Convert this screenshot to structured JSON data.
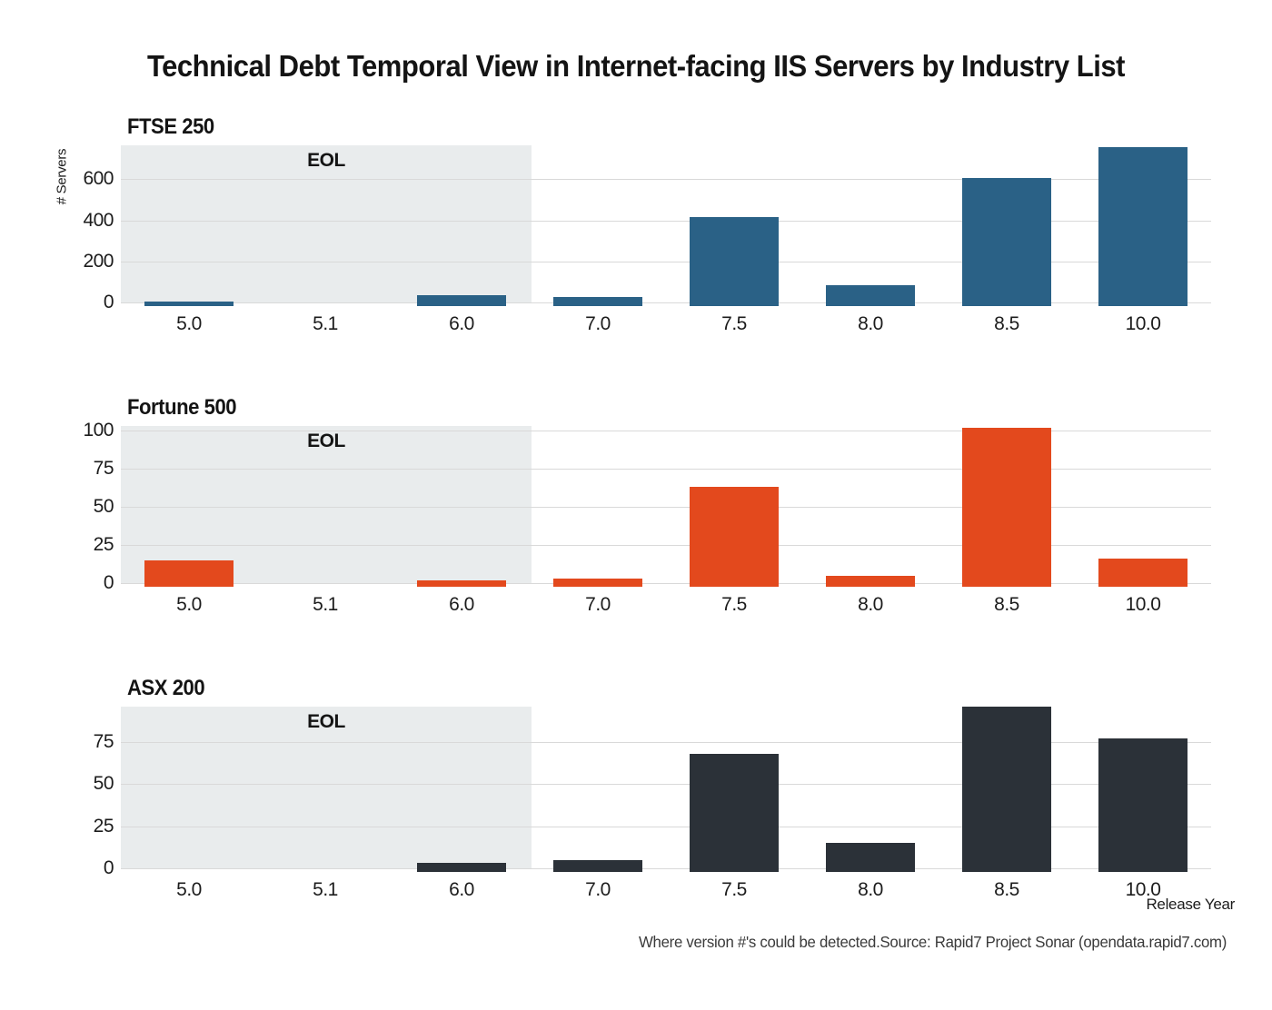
{
  "page": {
    "title": "Technical Debt Temporal View in Internet-facing IIS Servers by Industry List",
    "caption": "Where version #'s could be detected.Source: Rapid7 Project Sonar (opendata.rapid7.com)",
    "x_axis_label": "Release Year",
    "y_axis_label": "# Servers",
    "eol_label": "EOL"
  },
  "colors": {
    "ftse_bar": "#2a6186",
    "fortune_bar": "#e3491d",
    "asx_bar": "#2b3138",
    "eol_band": "#e9eced",
    "gridline": "#d9d9d9",
    "text": "#1c1c1c",
    "caption_text": "#3a3a3a"
  },
  "chart_data": [
    {
      "type": "bar",
      "title": "FTSE 250",
      "categories": [
        "5.0",
        "5.1",
        "6.0",
        "7.0",
        "7.5",
        "8.0",
        "8.5",
        "10.0"
      ],
      "values": [
        5,
        0,
        35,
        28,
        415,
        85,
        605,
        755
      ],
      "ylabel": "# Servers",
      "xlabel": "Release Year",
      "yticks": [
        0,
        200,
        400,
        600
      ],
      "ylim": [
        0,
        765
      ],
      "bar_color": "#2a6186",
      "annotation": "EOL",
      "annotation_span": [
        "5.0",
        "6.0"
      ],
      "grid": "on",
      "legend": "none"
    },
    {
      "type": "bar",
      "title": "Fortune 500",
      "categories": [
        "5.0",
        "5.1",
        "6.0",
        "7.0",
        "7.5",
        "8.0",
        "8.5",
        "10.0"
      ],
      "values": [
        15,
        0,
        2,
        3,
        63,
        5,
        102,
        16
      ],
      "ylabel": "",
      "xlabel": "Release Year",
      "yticks": [
        0,
        25,
        50,
        75,
        100
      ],
      "ylim": [
        0,
        103
      ],
      "bar_color": "#e3491d",
      "annotation": "EOL",
      "annotation_span": [
        "5.0",
        "6.0"
      ],
      "grid": "on",
      "legend": "none"
    },
    {
      "type": "bar",
      "title": "ASX 200",
      "categories": [
        "5.0",
        "5.1",
        "6.0",
        "7.0",
        "7.5",
        "8.0",
        "8.5",
        "10.0"
      ],
      "values": [
        0,
        0,
        3,
        5,
        68,
        15,
        96,
        77
      ],
      "ylabel": "",
      "xlabel": "Release Year",
      "yticks": [
        0,
        25,
        50,
        75
      ],
      "ylim": [
        0,
        96
      ],
      "bar_color": "#2b3138",
      "annotation": "EOL",
      "annotation_span": [
        "5.0",
        "6.0"
      ],
      "grid": "on",
      "legend": "none"
    }
  ]
}
